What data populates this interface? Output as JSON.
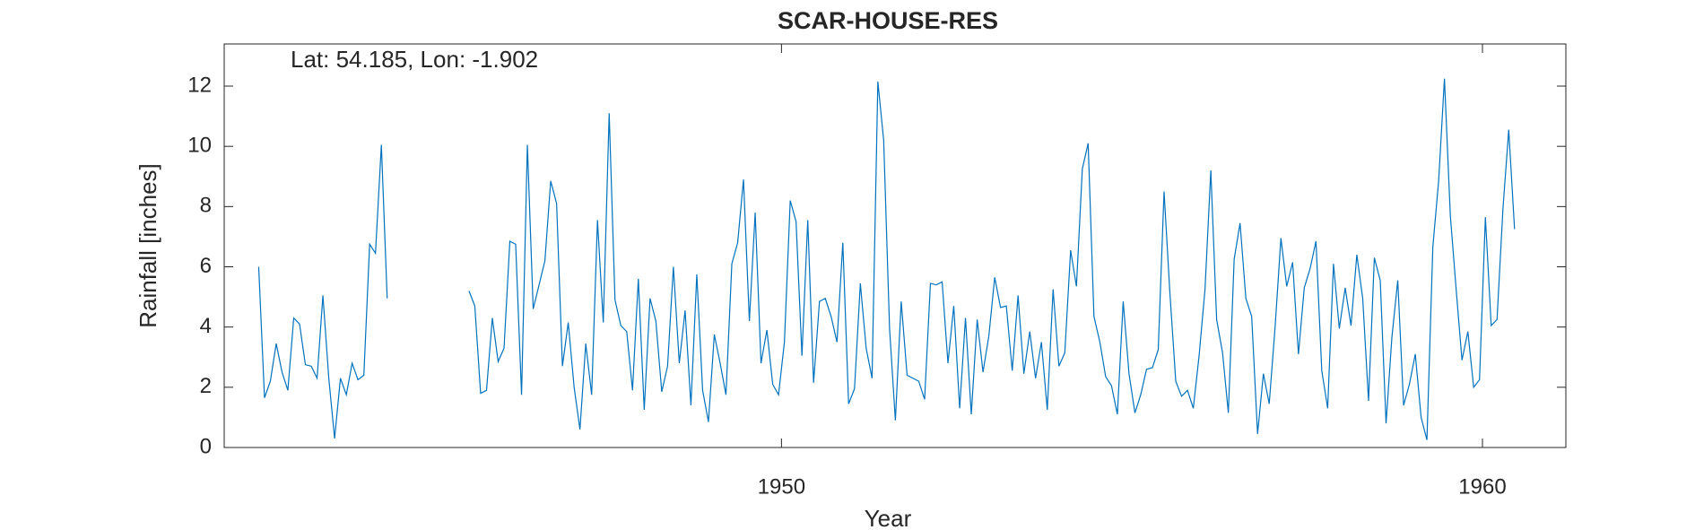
{
  "chart_data": {
    "type": "line",
    "title": "SCAR-HOUSE-RES",
    "annotation": "Lat: 54.185, Lon: -1.902",
    "xlabel": "Year",
    "ylabel": "Rainfall [inches]",
    "color": "#0072bd",
    "grid": false,
    "xlim": [
      1942.05,
      1961.19
    ],
    "xticks": [
      1950,
      1960
    ],
    "ylim": [
      0,
      13.4
    ],
    "yticks": [
      0,
      2,
      4,
      6,
      8,
      10,
      12
    ],
    "x": [
      1942.542,
      1942.625,
      1942.708,
      1942.792,
      1942.875,
      1942.958,
      1943.042,
      1943.125,
      1943.208,
      1943.292,
      1943.375,
      1943.458,
      1943.542,
      1943.625,
      1943.708,
      1943.792,
      1943.875,
      1943.958,
      1944.042,
      1944.125,
      1944.208,
      1944.292,
      1944.375,
      1944.458,
      1944.542,
      1944.625,
      1944.708,
      1944.792,
      1944.875,
      1944.958,
      1945.042,
      1945.125,
      1945.208,
      1945.292,
      1945.375,
      1945.458,
      1945.542,
      1945.625,
      1945.708,
      1945.792,
      1945.875,
      1945.958,
      1946.042,
      1946.125,
      1946.208,
      1946.292,
      1946.375,
      1946.458,
      1946.542,
      1946.625,
      1946.708,
      1946.792,
      1946.875,
      1946.958,
      1947.042,
      1947.125,
      1947.208,
      1947.292,
      1947.375,
      1947.458,
      1947.542,
      1947.625,
      1947.708,
      1947.792,
      1947.875,
      1947.958,
      1948.042,
      1948.125,
      1948.208,
      1948.292,
      1948.375,
      1948.458,
      1948.542,
      1948.625,
      1948.708,
      1948.792,
      1948.875,
      1948.958,
      1949.042,
      1949.125,
      1949.208,
      1949.292,
      1949.375,
      1949.458,
      1949.542,
      1949.625,
      1949.708,
      1949.792,
      1949.875,
      1949.958,
      1950.042,
      1950.125,
      1950.208,
      1950.292,
      1950.375,
      1950.458,
      1950.542,
      1950.625,
      1950.708,
      1950.792,
      1950.875,
      1950.958,
      1951.042,
      1951.125,
      1951.208,
      1951.292,
      1951.375,
      1951.458,
      1951.542,
      1951.625,
      1951.708,
      1951.792,
      1951.875,
      1951.958,
      1952.042,
      1952.125,
      1952.208,
      1952.292,
      1952.375,
      1952.458,
      1952.542,
      1952.625,
      1952.708,
      1952.792,
      1952.875,
      1952.958,
      1953.042,
      1953.125,
      1953.208,
      1953.292,
      1953.375,
      1953.458,
      1953.542,
      1953.625,
      1953.708,
      1953.792,
      1953.875,
      1953.958,
      1954.042,
      1954.125,
      1954.208,
      1954.292,
      1954.375,
      1954.458,
      1954.542,
      1954.625,
      1954.708,
      1954.792,
      1954.875,
      1954.958,
      1955.042,
      1955.125,
      1955.208,
      1955.292,
      1955.375,
      1955.458,
      1955.542,
      1955.625,
      1955.708,
      1955.792,
      1955.875,
      1955.958,
      1956.042,
      1956.125,
      1956.208,
      1956.292,
      1956.375,
      1956.458,
      1956.542,
      1956.625,
      1956.708,
      1956.792,
      1956.875,
      1956.958,
      1957.042,
      1957.125,
      1957.208,
      1957.292,
      1957.375,
      1957.458,
      1957.542,
      1957.625,
      1957.708,
      1957.792,
      1957.875,
      1957.958,
      1958.042,
      1958.125,
      1958.208,
      1958.292,
      1958.375,
      1958.458,
      1958.542,
      1958.625,
      1958.708,
      1958.792,
      1958.875,
      1958.958,
      1959.042,
      1959.125,
      1959.208,
      1959.292,
      1959.375,
      1959.458,
      1959.542,
      1959.625,
      1959.708,
      1959.792,
      1959.875,
      1959.958,
      1960.042,
      1960.125,
      1960.208,
      1960.292,
      1960.375,
      1960.458
    ],
    "values": [
      6.0,
      1.65,
      2.2,
      3.45,
      2.5,
      1.9,
      4.3,
      4.1,
      2.75,
      2.7,
      2.3,
      5.05,
      2.3,
      0.3,
      2.3,
      1.75,
      2.8,
      2.25,
      2.4,
      6.75,
      6.45,
      10.05,
      4.95,
      null,
      null,
      null,
      null,
      null,
      null,
      null,
      null,
      null,
      null,
      null,
      null,
      null,
      5.2,
      4.7,
      1.8,
      1.9,
      4.3,
      2.85,
      3.3,
      6.85,
      6.75,
      1.75,
      10.05,
      4.6,
      5.4,
      6.2,
      8.85,
      8.1,
      2.7,
      4.15,
      2.0,
      0.6,
      3.45,
      1.75,
      7.55,
      4.15,
      11.1,
      4.9,
      4.05,
      3.85,
      1.9,
      5.6,
      1.25,
      4.95,
      4.2,
      1.85,
      2.7,
      6.0,
      2.8,
      4.55,
      1.4,
      5.75,
      1.9,
      0.85,
      3.75,
      2.8,
      1.75,
      6.1,
      6.8,
      8.9,
      4.2,
      7.8,
      2.8,
      3.9,
      2.1,
      1.75,
      3.5,
      8.2,
      7.5,
      3.05,
      7.55,
      2.15,
      4.85,
      4.95,
      4.35,
      3.5,
      6.8,
      1.45,
      1.95,
      5.45,
      3.3,
      2.3,
      12.15,
      10.2,
      3.95,
      0.9,
      4.85,
      2.4,
      2.3,
      2.2,
      1.6,
      5.45,
      5.4,
      5.5,
      2.8,
      4.7,
      1.3,
      4.3,
      1.1,
      4.25,
      2.5,
      3.7,
      5.65,
      4.65,
      4.7,
      2.55,
      5.05,
      2.45,
      3.85,
      2.3,
      3.5,
      1.25,
      5.25,
      2.7,
      3.15,
      6.55,
      5.35,
      9.25,
      10.1,
      4.35,
      3.5,
      2.35,
      2.05,
      1.1,
      4.85,
      2.45,
      1.15,
      1.75,
      2.6,
      2.65,
      3.25,
      8.5,
      5.1,
      2.2,
      1.7,
      1.9,
      1.3,
      3.05,
      5.25,
      9.2,
      4.25,
      3.15,
      1.15,
      6.25,
      7.45,
      4.95,
      4.35,
      0.45,
      2.45,
      1.45,
      4.0,
      6.95,
      5.35,
      6.15,
      3.1,
      5.3,
      5.95,
      6.85,
      2.55,
      1.3,
      6.1,
      3.95,
      5.3,
      4.05,
      6.4,
      4.95,
      1.55,
      6.3,
      5.55,
      0.8,
      3.65,
      5.55,
      1.4,
      2.1,
      3.1,
      1.0,
      0.25,
      6.65,
      8.85,
      12.25,
      7.7,
      5.25,
      2.9,
      3.85,
      2.0,
      2.25,
      7.65,
      4.05,
      4.25,
      7.9,
      10.55,
      7.25
    ]
  }
}
